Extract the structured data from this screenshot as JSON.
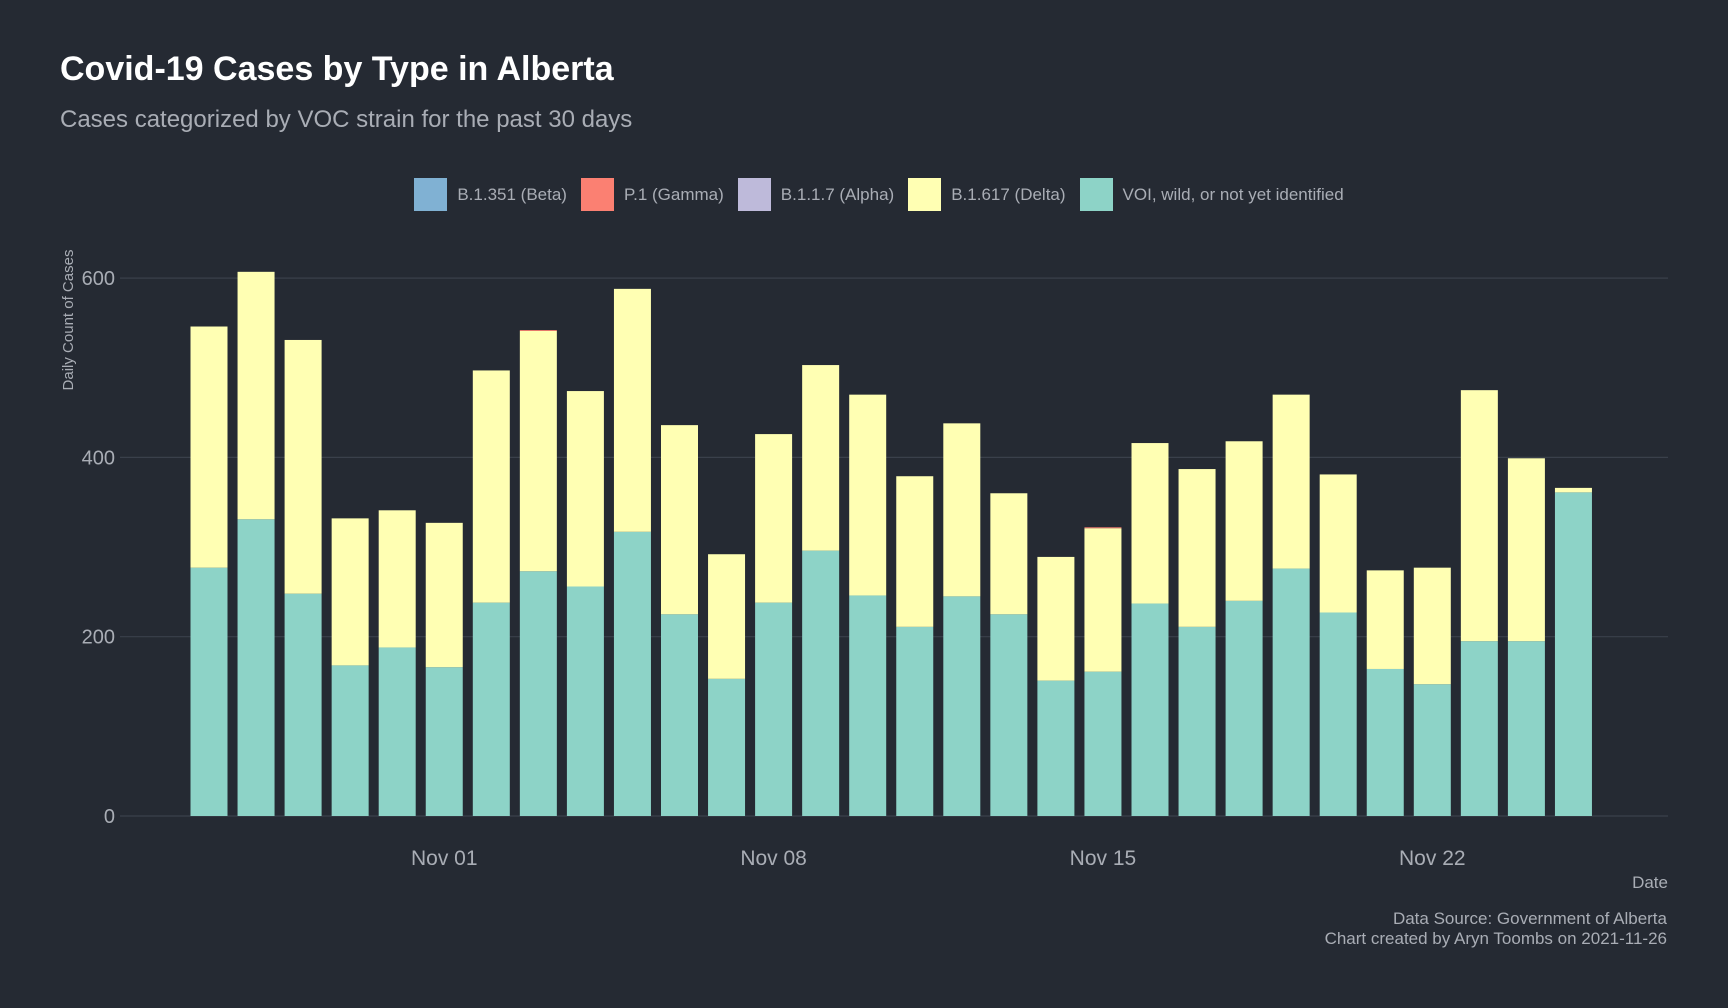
{
  "title": "Covid-19 Cases by Type in Alberta",
  "subtitle": "Cases categorized by VOC strain for the past 30 days",
  "caption": {
    "line1": "Data Source: Government of Alberta",
    "line2": "Chart created by Aryn Toombs on 2021-11-26"
  },
  "colors": {
    "background": "#252a33",
    "grid": "#3a404b",
    "beta": "#80b1d3",
    "gamma": "#fb8072",
    "alpha": "#bebada",
    "delta": "#ffffb3",
    "voi": "#8dd3c7"
  },
  "chart_data": {
    "type": "bar",
    "stacked": true,
    "xlabel": "Date",
    "ylabel": "Daily Count of Cases",
    "ylim": [
      0,
      650
    ],
    "yticks": [
      0,
      200,
      400,
      600
    ],
    "grid": true,
    "legend_position": "top",
    "x_tick_labels": [
      {
        "label": "Nov 01",
        "index": 5
      },
      {
        "label": "Nov 08",
        "index": 12
      },
      {
        "label": "Nov 15",
        "index": 19
      },
      {
        "label": "Nov 22",
        "index": 26
      }
    ],
    "categories": [
      "2021-10-27",
      "2021-10-28",
      "2021-10-29",
      "2021-10-30",
      "2021-10-31",
      "2021-11-01",
      "2021-11-02",
      "2021-11-03",
      "2021-11-04",
      "2021-11-05",
      "2021-11-06",
      "2021-11-07",
      "2021-11-08",
      "2021-11-09",
      "2021-11-10",
      "2021-11-11",
      "2021-11-12",
      "2021-11-13",
      "2021-11-14",
      "2021-11-15",
      "2021-11-16",
      "2021-11-17",
      "2021-11-18",
      "2021-11-19",
      "2021-11-20",
      "2021-11-21",
      "2021-11-22",
      "2021-11-23",
      "2021-11-24",
      "2021-11-25"
    ],
    "series": [
      {
        "name": "B.1.351 (Beta)",
        "color_key": "beta",
        "values": [
          0,
          0,
          0,
          0,
          0,
          0,
          0,
          0,
          0,
          0,
          0,
          0,
          0,
          0,
          0,
          0,
          0,
          0,
          0,
          0,
          0,
          0,
          0,
          0,
          0,
          0,
          0,
          0,
          0,
          0
        ]
      },
      {
        "name": "P.1 (Gamma)",
        "color_key": "gamma",
        "values": [
          0,
          0,
          0,
          0,
          0,
          0,
          0,
          1,
          0,
          0,
          0,
          0,
          0,
          0,
          0,
          0,
          0,
          0,
          0,
          1,
          0,
          0,
          0,
          0,
          0,
          0,
          0,
          0,
          0,
          0
        ]
      },
      {
        "name": "B.1.1.7 (Alpha)",
        "color_key": "alpha",
        "values": [
          0,
          0,
          0,
          0,
          0,
          0,
          0,
          0,
          0,
          0,
          0,
          0,
          0,
          0,
          0,
          0,
          0,
          0,
          0,
          0,
          0,
          0,
          0,
          0,
          0,
          0,
          0,
          0,
          0,
          0
        ]
      },
      {
        "name": "B.1.617 (Delta)",
        "color_key": "delta",
        "values": [
          269,
          276,
          283,
          164,
          153,
          161,
          259,
          268,
          218,
          271,
          211,
          139,
          188,
          207,
          224,
          168,
          193,
          135,
          138,
          160,
          179,
          176,
          178,
          194,
          154,
          110,
          130,
          280,
          204,
          5
        ]
      },
      {
        "name": "VOI, wild, or not yet identified",
        "color_key": "voi",
        "values": [
          277,
          331,
          248,
          168,
          188,
          166,
          238,
          273,
          256,
          317,
          225,
          153,
          238,
          296,
          246,
          211,
          245,
          225,
          151,
          161,
          237,
          211,
          240,
          276,
          227,
          164,
          147,
          195,
          195,
          361
        ]
      }
    ]
  }
}
